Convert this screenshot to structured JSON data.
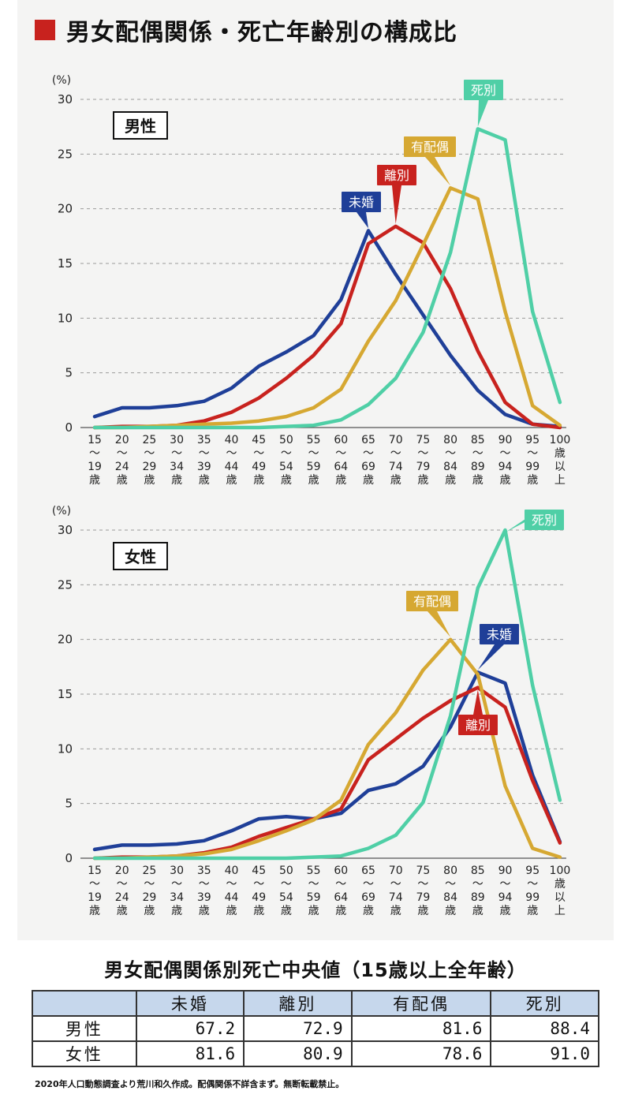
{
  "title": "男女配偶関係・死亡年齢別の構成比",
  "colors": {
    "title_square": "#c8221e",
    "未婚": "#1f3f98",
    "離別": "#c8221e",
    "有配偶": "#d6a832",
    "死別": "#4fcfa6"
  },
  "y_unit": "(%)",
  "chart_data": [
    {
      "type": "line",
      "panel_label": "男性",
      "x": [
        "15〜19歳",
        "20〜24歳",
        "25〜29歳",
        "30〜34歳",
        "35〜39歳",
        "40〜44歳",
        "45〜49歳",
        "50〜54歳",
        "55〜59歳",
        "60〜64歳",
        "65〜69歳",
        "70〜74歳",
        "75〜79歳",
        "80〜84歳",
        "85〜89歳",
        "90〜94歳",
        "95〜99歳",
        "100歳以上"
      ],
      "ylim": [
        0,
        30
      ],
      "yticks": [
        0,
        5,
        10,
        15,
        20,
        25,
        30
      ],
      "series": [
        {
          "name": "未婚",
          "values": [
            1.0,
            1.8,
            1.8,
            2.0,
            2.4,
            3.6,
            5.6,
            6.9,
            8.4,
            11.7,
            18.0,
            14.0,
            10.3,
            6.6,
            3.4,
            1.2,
            0.3,
            0.1
          ]
        },
        {
          "name": "離別",
          "values": [
            0.0,
            0.1,
            0.1,
            0.2,
            0.6,
            1.4,
            2.7,
            4.5,
            6.6,
            9.5,
            16.8,
            18.4,
            16.9,
            12.7,
            7.0,
            2.3,
            0.3,
            0.0
          ]
        },
        {
          "name": "有配偶",
          "values": [
            0.0,
            0.0,
            0.1,
            0.2,
            0.3,
            0.4,
            0.6,
            1.0,
            1.8,
            3.5,
            7.9,
            11.6,
            16.7,
            21.9,
            20.9,
            10.6,
            2.0,
            0.2
          ]
        },
        {
          "name": "死別",
          "values": [
            0.0,
            0.0,
            0.0,
            0.0,
            0.0,
            0.0,
            0.0,
            0.1,
            0.2,
            0.7,
            2.1,
            4.5,
            8.7,
            16.0,
            27.3,
            26.3,
            10.6,
            2.3
          ]
        }
      ]
    },
    {
      "type": "line",
      "panel_label": "女性",
      "x": [
        "15〜19歳",
        "20〜24歳",
        "25〜29歳",
        "30〜34歳",
        "35〜39歳",
        "40〜44歳",
        "45〜49歳",
        "50〜54歳",
        "55〜59歳",
        "60〜64歳",
        "65〜69歳",
        "70〜74歳",
        "75〜79歳",
        "80〜84歳",
        "85〜89歳",
        "90〜94歳",
        "95〜99歳",
        "100歳以上"
      ],
      "ylim": [
        0,
        30
      ],
      "yticks": [
        0,
        5,
        10,
        15,
        20,
        25,
        30
      ],
      "series": [
        {
          "name": "未婚",
          "values": [
            0.8,
            1.2,
            1.2,
            1.3,
            1.6,
            2.5,
            3.6,
            3.8,
            3.6,
            4.1,
            6.2,
            6.8,
            8.4,
            12.0,
            17.0,
            16.0,
            7.6,
            1.5
          ]
        },
        {
          "name": "離別",
          "values": [
            0.0,
            0.1,
            0.1,
            0.2,
            0.5,
            1.0,
            2.0,
            2.8,
            3.6,
            4.5,
            9.0,
            10.9,
            12.8,
            14.4,
            15.6,
            13.8,
            7.1,
            1.4
          ]
        },
        {
          "name": "有配偶",
          "values": [
            0.0,
            0.0,
            0.1,
            0.2,
            0.4,
            0.8,
            1.6,
            2.5,
            3.5,
            5.3,
            10.4,
            13.3,
            17.2,
            20.0,
            16.8,
            6.6,
            0.9,
            0.1
          ]
        },
        {
          "name": "死別",
          "values": [
            0.0,
            0.0,
            0.0,
            0.0,
            0.0,
            0.0,
            0.0,
            0.0,
            0.1,
            0.2,
            0.9,
            2.1,
            5.1,
            13.0,
            24.7,
            30.0,
            15.8,
            5.3
          ]
        }
      ]
    }
  ],
  "table": {
    "title": "男女配偶関係別死亡中央値（15歳以上全年齢）",
    "columns": [
      "未婚",
      "離別",
      "有配偶",
      "死別"
    ],
    "rows": [
      {
        "label": "男性",
        "values": [
          "67.2",
          "72.9",
          "81.6",
          "88.4"
        ]
      },
      {
        "label": "女性",
        "values": [
          "81.6",
          "80.9",
          "78.6",
          "91.0"
        ]
      }
    ]
  },
  "note": "2020年人口動態調査より荒川和久作成。配偶関係不詳含まず。無断転載禁止。"
}
